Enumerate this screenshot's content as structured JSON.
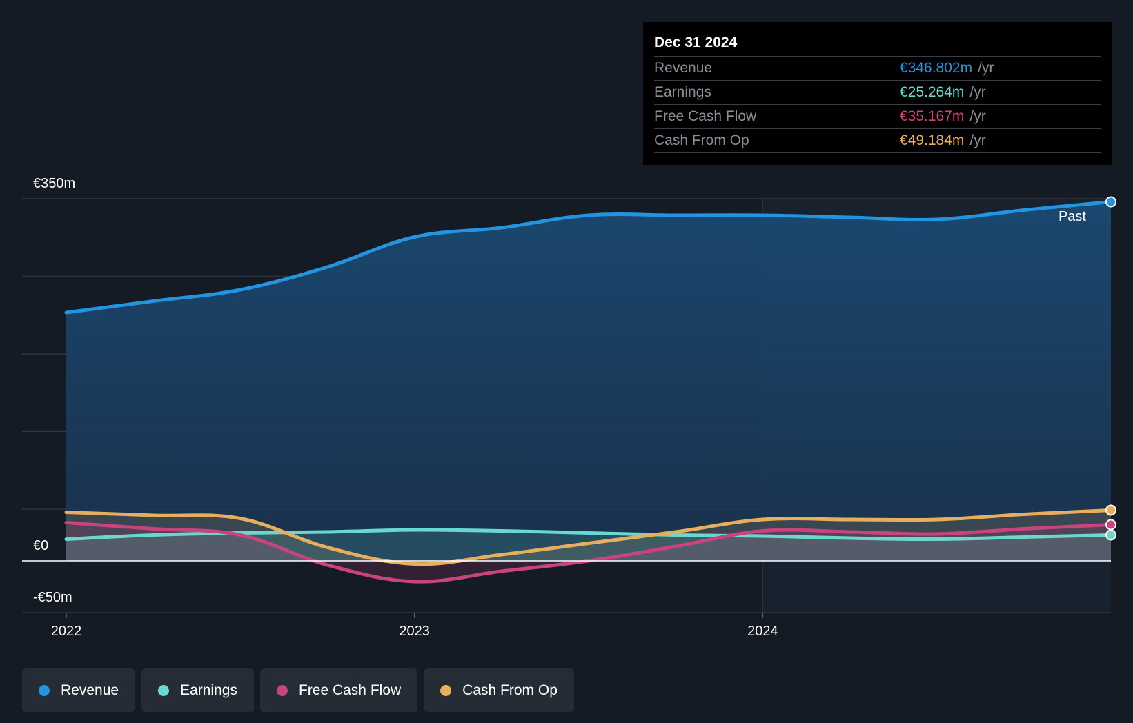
{
  "colors": {
    "background": "#151b24",
    "revenue": "#2394df",
    "earnings": "#6ad8cf",
    "free_cash_flow": "#c9437e",
    "cash_from_op": "#e7af5c",
    "grid": "#2c3440"
  },
  "tooltip": {
    "date": "Dec 31 2024",
    "rows": [
      {
        "label": "Revenue",
        "value": "€346.802m",
        "unit": "/yr"
      },
      {
        "label": "Earnings",
        "value": "€25.264m",
        "unit": "/yr"
      },
      {
        "label": "Free Cash Flow",
        "value": "€35.167m",
        "unit": "/yr"
      },
      {
        "label": "Cash From Op",
        "value": "€49.184m",
        "unit": "/yr"
      }
    ]
  },
  "past_label": "Past",
  "legend": [
    {
      "label": "Revenue"
    },
    {
      "label": "Earnings"
    },
    {
      "label": "Free Cash Flow"
    },
    {
      "label": "Cash From Op"
    }
  ],
  "chart_data": {
    "type": "line",
    "y_tick_labels": [
      "€350m",
      "€0",
      "-€50m"
    ],
    "y_ticks": [
      350,
      0,
      -50
    ],
    "ylim": [
      -50,
      350
    ],
    "x_tick_labels": [
      "2022",
      "2023",
      "2024"
    ],
    "x_ticks": [
      2022.0,
      2023.0,
      2024.0
    ],
    "xlim": [
      2021.87,
      2025.0
    ],
    "legend_position": "bottom",
    "series": [
      {
        "name": "Revenue",
        "x": [
          2022.0,
          2022.25,
          2022.5,
          2022.75,
          2023.0,
          2023.25,
          2023.5,
          2023.75,
          2024.0,
          2024.25,
          2024.5,
          2024.75,
          2025.0
        ],
        "y": [
          240,
          251,
          262,
          284,
          313,
          322,
          334,
          334,
          334,
          332,
          330,
          339,
          347
        ]
      },
      {
        "name": "Earnings",
        "x": [
          2022.0,
          2022.25,
          2022.5,
          2022.75,
          2023.0,
          2023.25,
          2023.5,
          2023.75,
          2024.0,
          2024.25,
          2024.5,
          2024.75,
          2025.0
        ],
        "y": [
          21,
          25,
          27,
          28,
          30,
          29,
          27,
          25,
          24,
          22,
          21,
          23,
          25
        ]
      },
      {
        "name": "Free Cash Flow",
        "x": [
          2022.0,
          2022.25,
          2022.5,
          2022.75,
          2023.0,
          2023.25,
          2023.5,
          2023.75,
          2024.0,
          2024.25,
          2024.5,
          2024.75,
          2025.0
        ],
        "y": [
          37,
          31,
          25,
          -4,
          -20,
          -10,
          0,
          14,
          29,
          28,
          26,
          31,
          35
        ]
      },
      {
        "name": "Cash From Op",
        "x": [
          2022.0,
          2022.25,
          2022.5,
          2022.75,
          2023.0,
          2023.25,
          2023.5,
          2023.75,
          2024.0,
          2024.25,
          2024.5,
          2024.75,
          2025.0
        ],
        "y": [
          47,
          44,
          41,
          13,
          -3,
          6,
          17,
          28,
          40,
          40,
          40,
          45,
          49
        ]
      }
    ]
  }
}
